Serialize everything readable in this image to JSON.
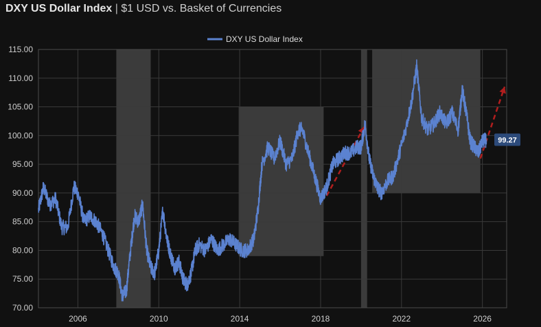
{
  "header": {
    "title": "DXY US Dollar Index",
    "separator": "|",
    "subtitle": "$1 USD vs. Basket of Currencies"
  },
  "colors": {
    "background": "#111111",
    "line": "#5b82d0",
    "shade": "#4a4a4a",
    "trend": "#b01e1e",
    "grid": "#3a3a3a",
    "tag_bg": "#2c4a7a"
  },
  "chart_data": {
    "type": "line",
    "title": "DXY US Dollar Index | $1 USD vs. Basket of Currencies",
    "xlabel": "",
    "ylabel": "",
    "xlim": [
      2004.05,
      2027.2
    ],
    "ylim": [
      70,
      115
    ],
    "grid": true,
    "legend": "top-center",
    "y_ticks": [
      "115.00",
      "110.00",
      "105.00",
      "100.00",
      "95.00",
      "90.00",
      "85.00",
      "80.00",
      "75.00",
      "70.00"
    ],
    "x_ticks": [
      "2006",
      "2010",
      "2014",
      "2018",
      "2022",
      "2026"
    ],
    "series": [
      {
        "name": "DXY US Dollar Index",
        "x": [
          2004.05,
          2004.3,
          2004.6,
          2004.9,
          2005.2,
          2005.5,
          2005.8,
          2006.0,
          2006.3,
          2006.6,
          2006.9,
          2007.2,
          2007.5,
          2007.8,
          2008.0,
          2008.2,
          2008.4,
          2008.6,
          2008.8,
          2009.0,
          2009.2,
          2009.4,
          2009.6,
          2009.8,
          2010.0,
          2010.2,
          2010.4,
          2010.6,
          2010.8,
          2011.0,
          2011.2,
          2011.4,
          2011.6,
          2011.8,
          2012.0,
          2012.3,
          2012.6,
          2012.9,
          2013.2,
          2013.5,
          2013.8,
          2014.1,
          2014.4,
          2014.7,
          2014.9,
          2015.1,
          2015.4,
          2015.7,
          2016.0,
          2016.3,
          2016.6,
          2016.9,
          2017.1,
          2017.4,
          2017.7,
          2018.0,
          2018.3,
          2018.6,
          2018.9,
          2019.2,
          2019.5,
          2019.8,
          2020.0,
          2020.2,
          2020.4,
          2020.6,
          2020.8,
          2021.0,
          2021.3,
          2021.6,
          2021.9,
          2022.2,
          2022.5,
          2022.75,
          2023.0,
          2023.3,
          2023.6,
          2023.9,
          2024.2,
          2024.5,
          2024.8,
          2025.0,
          2025.2,
          2025.4,
          2025.6,
          2025.8,
          2026.0,
          2026.2
        ],
        "values": [
          87,
          91,
          88,
          89,
          84,
          84,
          91,
          90,
          85,
          86,
          85,
          83,
          80,
          77,
          76,
          72,
          73,
          80,
          86,
          85,
          88,
          80,
          77,
          76,
          80,
          87,
          82,
          79,
          77,
          78,
          75,
          74,
          76,
          80,
          81,
          80,
          82,
          80,
          81,
          82,
          81,
          80,
          80,
          82,
          87,
          95,
          98,
          96,
          99,
          95,
          96,
          101,
          101,
          97,
          93,
          89,
          91,
          95,
          96,
          97,
          97,
          98,
          98,
          102,
          96,
          93,
          91,
          90,
          92,
          93,
          97,
          101,
          106,
          112,
          103,
          101,
          102,
          104,
          102,
          104,
          101,
          108,
          104,
          99,
          98,
          97,
          99,
          99.27
        ]
      }
    ],
    "shaded_ranges": [
      {
        "x_start": 2007.9,
        "x_end": 2009.6,
        "y_low": 70,
        "y_high": 115
      },
      {
        "x_start": 2013.95,
        "x_end": 2018.15,
        "y_low": 79,
        "y_high": 105
      },
      {
        "x_start": 2020.0,
        "x_end": 2020.3,
        "y_low": 70,
        "y_high": 115
      },
      {
        "x_start": 2020.55,
        "x_end": 2025.9,
        "y_low": 90,
        "y_high": 115
      }
    ],
    "trend_segments": [
      {
        "x": [
          2018.3,
          2020.15
        ],
        "y": [
          89.5,
          101.5
        ]
      },
      {
        "x": [
          2025.9,
          2027.1
        ],
        "y": [
          96,
          108.5
        ]
      }
    ],
    "last_value_label": "99.27",
    "last_value": 99.27
  }
}
